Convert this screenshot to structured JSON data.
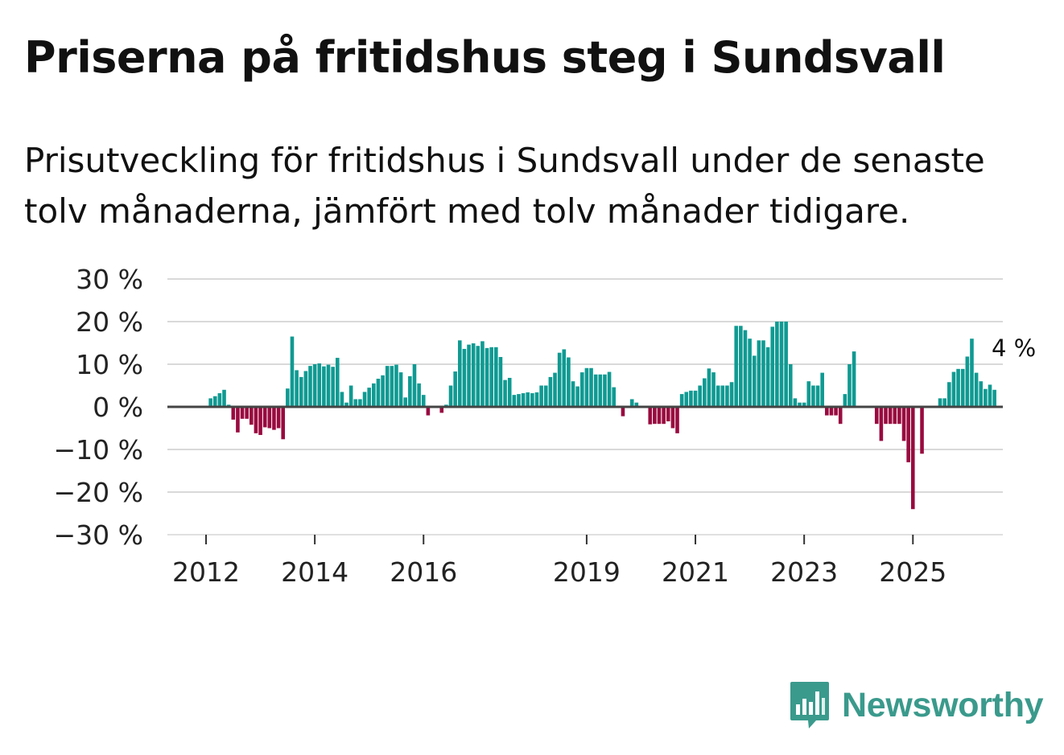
{
  "title": "Priserna på fritidshus steg i Sundsvall",
  "subtitle": "Prisutveckling för fritidshus i Sundsvall under de senaste tolv månaderna, jämfört med tolv månader tidigare.",
  "brand": {
    "name": "Newsworthy"
  },
  "colors": {
    "positive": "#0f9a92",
    "negative": "#990b3f",
    "grid": "#d9d9d9",
    "zero": "#444444",
    "brand": "#3a9a8c"
  },
  "chart_data": {
    "type": "bar",
    "title": "Priserna på fritidshus steg i Sundsvall",
    "ylabel": "",
    "xlabel": "",
    "ylim": [
      -30,
      30
    ],
    "yticks": [
      30,
      20,
      10,
      0,
      -10,
      -20,
      -30
    ],
    "ytick_labels": [
      "30 %",
      "20 %",
      "10 %",
      "0 %",
      "−10 %",
      "−20 %",
      "−30 %"
    ],
    "xticks": [
      {
        "label": "2012",
        "index": 0
      },
      {
        "label": "2014",
        "index": 24
      },
      {
        "label": "2016",
        "index": 48
      },
      {
        "label": "2019",
        "index": 84
      },
      {
        "label": "2021",
        "index": 108
      },
      {
        "label": "2023",
        "index": 132
      },
      {
        "label": "2025",
        "index": 156
      }
    ],
    "start": "2012-01",
    "last_value_label": "4 %",
    "values": [
      null,
      2,
      2.5,
      3.2,
      4,
      0.5,
      -3,
      -6,
      -2.8,
      -2.8,
      -4.2,
      -6.2,
      -6.6,
      -4.8,
      -5,
      -5.4,
      -5,
      -7.6,
      4.3,
      16.5,
      8.6,
      7,
      8.4,
      9.6,
      10,
      10.2,
      9.5,
      9.9,
      9.4,
      11.5,
      3.5,
      1,
      5,
      1.8,
      1.8,
      3.5,
      4.5,
      5.5,
      6.6,
      7.4,
      9.6,
      9.6,
      9.9,
      8.1,
      2.2,
      7.2,
      10,
      5.5,
      2.8,
      -2,
      0,
      0,
      -1.4,
      0.5,
      5,
      8.3,
      15.6,
      13.6,
      14.6,
      14.9,
      14.3,
      15.4,
      13.8,
      14,
      14,
      11.7,
      6.3,
      6.8,
      2.8,
      3,
      3.2,
      3.4,
      3.2,
      3.4,
      5,
      5,
      7,
      8,
      12.7,
      13.5,
      11.6,
      6,
      4.8,
      8.1,
      9.1,
      9.1,
      7.6,
      7.6,
      7.6,
      8.2,
      4.6,
      0,
      -2.2,
      0,
      1.8,
      1,
      0,
      0,
      -4.1,
      -4,
      -4,
      -4,
      -3.4,
      -5,
      -6.2,
      3,
      3.5,
      3.8,
      3.8,
      5,
      6.7,
      9,
      8.1,
      5,
      5,
      5,
      5.8,
      19,
      19,
      18,
      16,
      12,
      15.6,
      15.6,
      14,
      18.8,
      20,
      20,
      20,
      10,
      2,
      1,
      1,
      6,
      5,
      5,
      8,
      -2,
      -2,
      -2,
      -4,
      3,
      10,
      13,
      0,
      0,
      0,
      0,
      -4,
      -8,
      -4,
      -4,
      -4,
      -4,
      -8,
      -13,
      -24,
      0,
      -11,
      0,
      0,
      0,
      2,
      2,
      5.8,
      8.2,
      8.9,
      8.9,
      11.8,
      16,
      8,
      6,
      4.2,
      5.2,
      4
    ]
  }
}
